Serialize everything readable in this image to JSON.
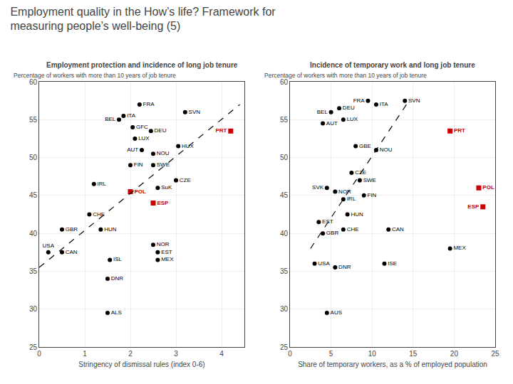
{
  "title": "Employment quality in the How’s life? Framework for\nmeasuring people’s well-being (5)",
  "chart_data": [
    {
      "type": "scatter",
      "title": "Employment protection and incidence of long job tenure",
      "xlabel": "Stringency of dismissal rules (index 0-6)",
      "ylabel": "Percentage of workers with more than 10 years of job tenure",
      "xlim": [
        0,
        4.5
      ],
      "ylim": [
        25,
        60
      ],
      "xticks": [
        0,
        1,
        2,
        3,
        4
      ],
      "yticks": [
        25,
        30,
        35,
        40,
        45,
        50,
        55,
        60
      ],
      "grid": true,
      "series": [
        {
          "color": "#000000",
          "marker": "circle",
          "x": [
            0.2,
            0.5,
            0.5,
            1.1,
            1.2,
            1.35,
            1.55,
            1.5,
            1.5,
            1.75,
            1.85,
            2.0,
            2.05,
            2.1,
            2.2,
            2.25,
            2.45,
            2.5,
            2.5,
            2.5,
            2.6,
            2.6,
            2.6,
            3.0,
            3.05,
            3.2
          ],
          "values": [
            37.5,
            40.5,
            37.5,
            42.5,
            46.5,
            40.5,
            36.5,
            34.0,
            29.5,
            55.0,
            55.5,
            49.0,
            54.0,
            52.5,
            57.0,
            51.0,
            53.5,
            50.5,
            49.0,
            38.5,
            37.5,
            36.5,
            46.0,
            47.0,
            51.5,
            56.0
          ],
          "labels": [
            "USA",
            "GBR",
            "CAN",
            "CHE",
            "IRL",
            "HUN",
            "ISL",
            "DNR",
            "ALS",
            "BEL",
            "ITA",
            "FIN",
            "GFC",
            "LUX",
            "FRA",
            "AUT",
            "DEU",
            "NOU",
            "SWE",
            "NOR",
            "EST",
            "MEX",
            "SuK",
            "CZE",
            "HUX",
            "SVN"
          ]
        },
        {
          "color": "#cc0000",
          "marker": "square",
          "x": [
            2.0,
            2.5,
            4.2
          ],
          "values": [
            45.5,
            44.0,
            53.5
          ],
          "labels": [
            "POL",
            "ESP",
            "PRT"
          ]
        },
        {
          "type": "line",
          "line_style": "dashed",
          "color": "#000000",
          "x": [
            0.0,
            4.4
          ],
          "values": [
            35.5,
            57.0
          ]
        }
      ]
    },
    {
      "type": "scatter",
      "title": "Incidence of temporary work and long job tenure",
      "xlabel": "Share of temporary workers, as a % of employed population",
      "ylabel": "Percentage of workers with more than 10 years of job tenure",
      "xlim": [
        0,
        25
      ],
      "ylim": [
        25,
        60
      ],
      "xticks": [
        0,
        5,
        10,
        15,
        20,
        25
      ],
      "yticks": [
        25,
        30,
        35,
        40,
        45,
        50,
        55,
        60
      ],
      "grid": true,
      "series": [
        {
          "color": "#000000",
          "marker": "circle",
          "x": [
            4.5,
            3.0,
            4.0,
            3.5,
            4.0,
            5.0,
            4.5,
            5.5,
            6.5,
            6.0,
            5.5,
            6.5,
            6.5,
            7.5,
            7.0,
            8.5,
            9.0,
            8.0,
            9.5,
            10.5,
            10.5,
            12.0,
            11.5,
            14.0,
            19.5
          ],
          "values": [
            29.5,
            36.0,
            40.0,
            41.5,
            54.5,
            56.0,
            46.0,
            45.5,
            40.5,
            56.5,
            35.5,
            44.5,
            55.0,
            48.0,
            42.5,
            47.0,
            45.0,
            51.5,
            57.5,
            51.0,
            57.0,
            40.5,
            36.0,
            57.5,
            38.0
          ],
          "labels": [
            "AUS",
            "USA",
            "GBR",
            "EST",
            "AUT",
            "BEL",
            "SVK",
            "NOR",
            "CHE",
            "DEU",
            "DNR",
            "IRL",
            "LUX",
            "CZE",
            "HUN",
            "SWE",
            "FIN",
            "GBE",
            "FRA",
            "NOU",
            "ITA",
            "CAN",
            "ISE",
            "SVN",
            "MEX"
          ]
        },
        {
          "color": "#cc0000",
          "marker": "square",
          "x": [
            19.5,
            23.0,
            23.5
          ],
          "values": [
            53.5,
            46.0,
            43.5
          ],
          "labels": [
            "PRT",
            "POL",
            "ESP"
          ]
        },
        {
          "type": "line",
          "line_style": "dashed",
          "color": "#000000",
          "x": [
            2.5,
            14.5
          ],
          "values": [
            38.0,
            57.5
          ]
        }
      ]
    }
  ]
}
